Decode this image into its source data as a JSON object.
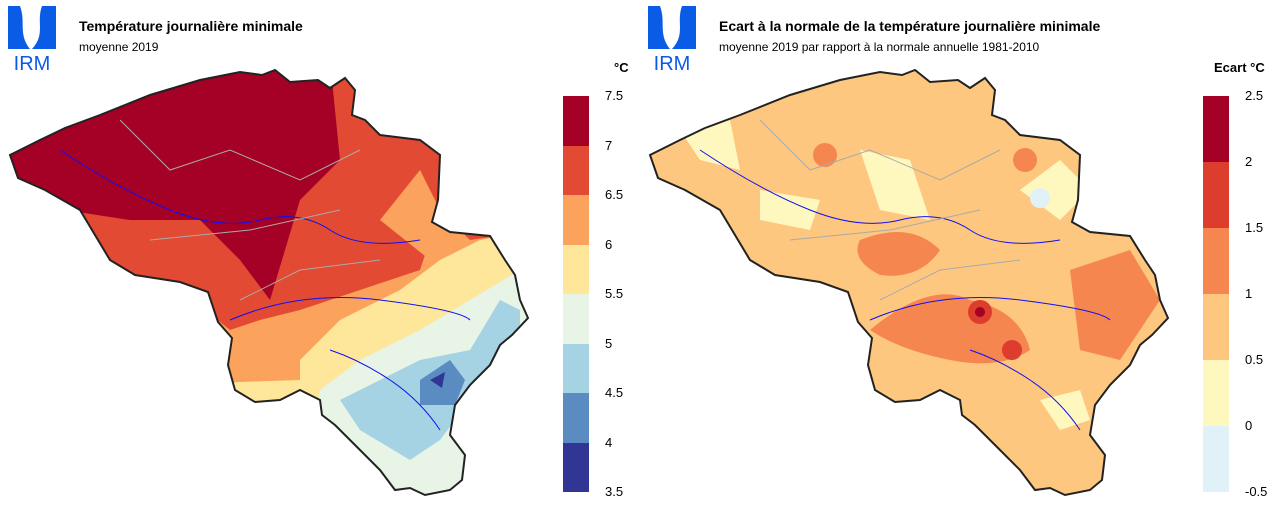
{
  "logo": {
    "text": "IRM",
    "color": "#0a5ce6"
  },
  "panels": [
    {
      "title": "Température journalière minimale",
      "subtitle": "moyenne 2019",
      "legend_title": "°C",
      "legend": {
        "ticks": [
          "7.5",
          "7",
          "6.5",
          "6",
          "5.5",
          "5",
          "4.5",
          "4",
          "3.5"
        ],
        "colors": [
          "#a50026",
          "#e34a33",
          "#fba25c",
          "#fee79a",
          "#e7f4e6",
          "#a6d3e4",
          "#5b8cc1",
          "#313695"
        ]
      }
    },
    {
      "title": "Ecart à la normale de la température journalière minimale",
      "subtitle": "moyenne 2019 par rapport à la normale annuelle 1981-2010",
      "legend_title": "Ecart °C",
      "legend": {
        "ticks": [
          "2.5",
          "2",
          "1.5",
          "1",
          "0.5",
          "0",
          "-0.5"
        ],
        "colors": [
          "#a50026",
          "#dc3d2d",
          "#f6864f",
          "#fdc77f",
          "#fef8bf",
          "#e0f1f7"
        ]
      }
    }
  ]
}
